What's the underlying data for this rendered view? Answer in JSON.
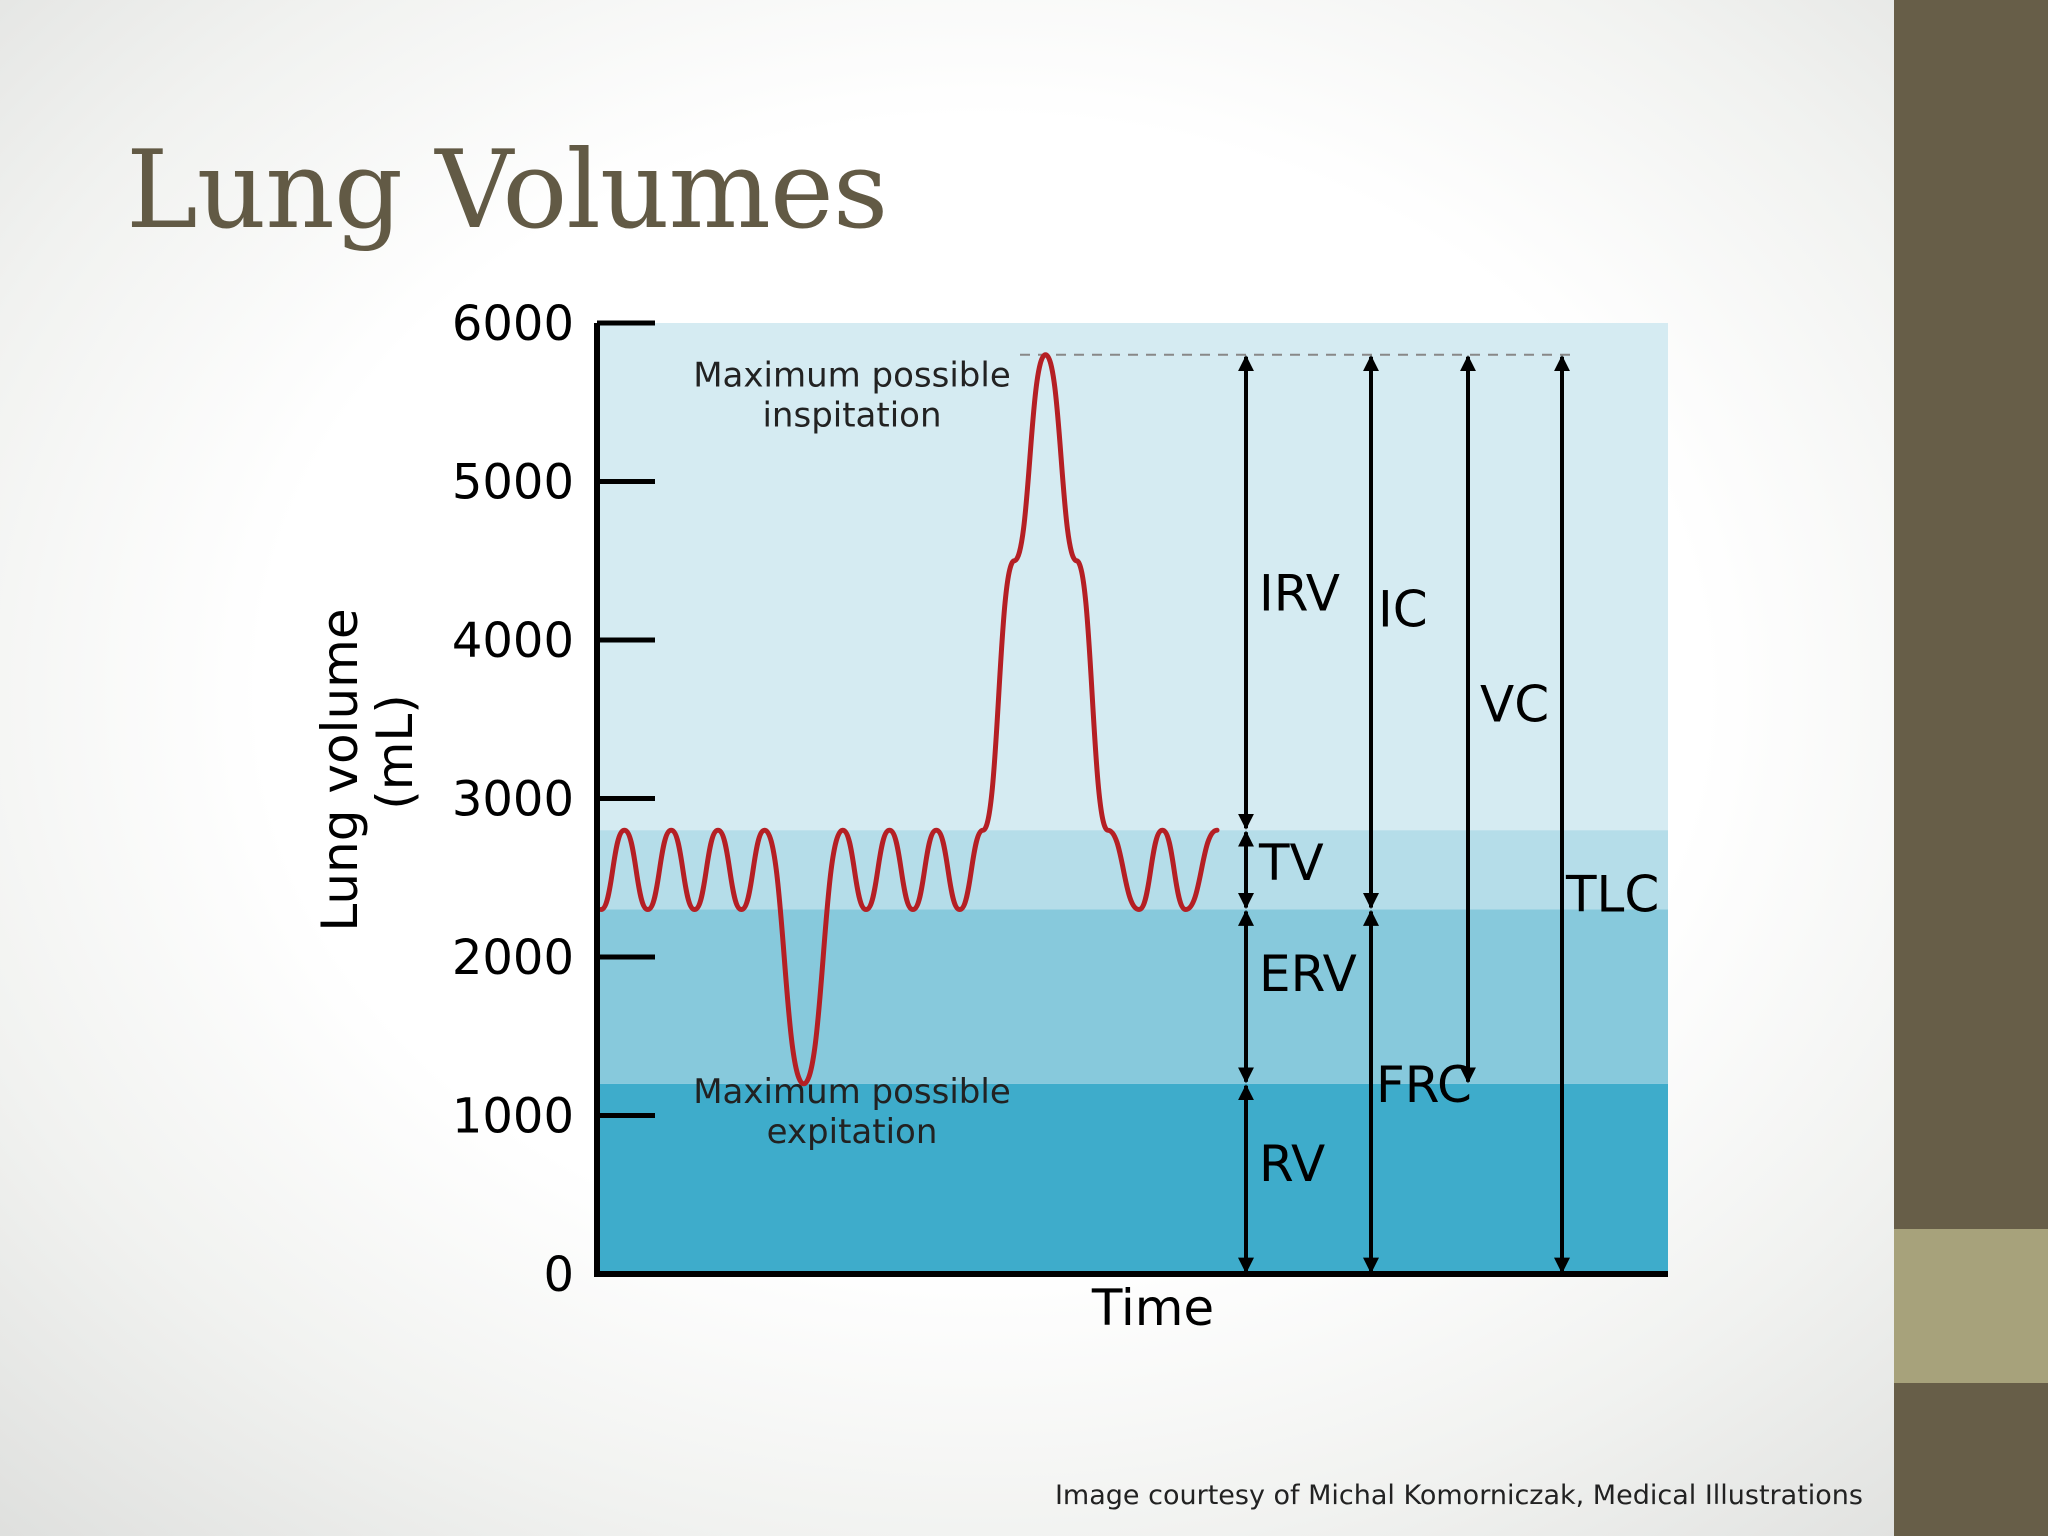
{
  "slide": {
    "title": "Lung Volumes",
    "credit": "Image courtesy of Michal Komorniczak, Medical Illustrations"
  },
  "colors": {
    "title": "#625a45",
    "sidebar": "#675e48",
    "sidebar_accent": "#a7a27b",
    "irv_band": "#d5ebf2",
    "tv_band": "#b5dde9",
    "erv_band": "#87c9dc",
    "rv_band": "#3eaccb",
    "trace": "#b51f24",
    "axis": "#000000"
  },
  "chart_data": {
    "type": "line",
    "xlabel": "Time",
    "ylabel": "Lung volume",
    "ylabel_unit": "(mL)",
    "ylim": [
      0,
      6000
    ],
    "yticks": [
      0,
      1000,
      2000,
      3000,
      4000,
      5000,
      6000
    ],
    "bands": [
      {
        "label": "RV",
        "from": 0,
        "to": 1200
      },
      {
        "label": "ERV",
        "from": 1200,
        "to": 2300
      },
      {
        "label": "TV",
        "from": 2300,
        "to": 2800
      },
      {
        "label": "IRV",
        "from": 2800,
        "to": 5800
      }
    ],
    "trace": [
      [
        0.0,
        2300
      ],
      [
        1.5,
        2800
      ],
      [
        3.0,
        2300
      ],
      [
        4.5,
        2800
      ],
      [
        6.0,
        2300
      ],
      [
        7.5,
        2800
      ],
      [
        9.0,
        2300
      ],
      [
        10.5,
        2800
      ],
      [
        13.0,
        1200
      ],
      [
        15.5,
        2800
      ],
      [
        17.0,
        2300
      ],
      [
        18.5,
        2800
      ],
      [
        20.0,
        2300
      ],
      [
        21.5,
        2800
      ],
      [
        23.0,
        2300
      ],
      [
        24.5,
        2800
      ],
      [
        26.5,
        4500
      ],
      [
        28.5,
        5800
      ],
      [
        30.5,
        4500
      ],
      [
        32.5,
        2800
      ],
      [
        34.5,
        2300
      ],
      [
        36.0,
        2800
      ],
      [
        37.5,
        2300
      ],
      [
        39.5,
        2800
      ]
    ],
    "trace_x_range": [
      0,
      39.5
    ],
    "annotations": [
      {
        "text_lines": [
          "Maximum possible",
          "inspitation"
        ],
        "y": 5600
      },
      {
        "text_lines": [
          "Maximum possible",
          "expitation"
        ],
        "y": 1080
      }
    ],
    "max_line": 5800,
    "arrows": [
      {
        "label": "IRV",
        "from": 2800,
        "to": 5800,
        "label_y": 4300
      },
      {
        "label": "TV",
        "from": 2300,
        "to": 2800,
        "label_y": 2600
      },
      {
        "label": "ERV",
        "from": 1200,
        "to": 2300,
        "label_y": 1900
      },
      {
        "label": "RV",
        "from": 0,
        "to": 1200,
        "label_y": 700
      },
      {
        "label": "IC",
        "from": 2300,
        "to": 5800,
        "label_y": 4200
      },
      {
        "label": "FRC",
        "from": 0,
        "to": 2300,
        "label_y": 1200
      },
      {
        "label": "VC",
        "from": 1200,
        "to": 5800,
        "label_y": 3600
      },
      {
        "label": "TLC",
        "from": 0,
        "to": 5800,
        "label_y": 2400
      }
    ]
  }
}
